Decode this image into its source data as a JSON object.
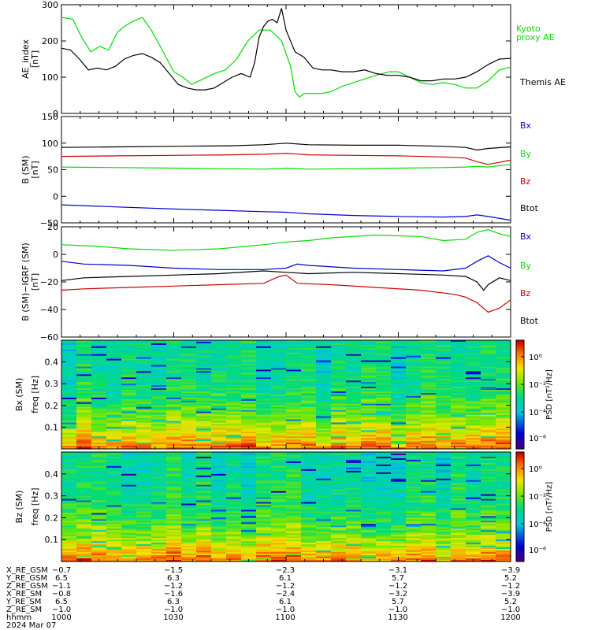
{
  "colors": {
    "black": "#000000",
    "blue": "#0000cc",
    "green": "#00dd00",
    "red": "#cc0000"
  },
  "colorbar": {
    "label": "PSD [nT²/Hz]",
    "ticks": [
      "10⁰",
      "10⁻²",
      "10⁻⁴",
      "10⁻⁶"
    ]
  },
  "chart_data": [
    {
      "type": "line",
      "ylabel": "AE_index",
      "yunit": "[nT]",
      "ylim": [
        0,
        300
      ],
      "yticks": [
        "300",
        "200",
        "100",
        "0"
      ],
      "xrange": [
        1000,
        1200
      ],
      "series": [
        {
          "name": "Kyoto proxy AE",
          "color": "#00dd00",
          "x": [
            1000,
            1005,
            1009,
            1013,
            1017,
            1021,
            1025,
            1028,
            1032,
            1036,
            1040,
            1044,
            1047,
            1050,
            1054,
            1058,
            1063,
            1068,
            1073,
            1078,
            1083,
            1088,
            1093,
            1098,
            1102,
            1104,
            1106,
            1108,
            1112,
            1116,
            1120,
            1125,
            1130,
            1135,
            1140,
            1146,
            1150,
            1155,
            1160,
            1165,
            1170,
            1175,
            1180,
            1185,
            1190,
            1195,
            1200
          ],
          "y": [
            265,
            260,
            210,
            170,
            185,
            175,
            225,
            240,
            255,
            265,
            230,
            185,
            150,
            115,
            100,
            80,
            95,
            110,
            120,
            150,
            200,
            230,
            230,
            200,
            130,
            60,
            45,
            55,
            55,
            55,
            60,
            75,
            85,
            95,
            105,
            115,
            115,
            100,
            85,
            80,
            85,
            80,
            70,
            70,
            90,
            120,
            128
          ]
        },
        {
          "name": "Themis AE",
          "color": "#000000",
          "x": [
            1000,
            1004,
            1008,
            1012,
            1016,
            1020,
            1024,
            1028,
            1032,
            1036,
            1040,
            1044,
            1048,
            1052,
            1056,
            1060,
            1064,
            1068,
            1072,
            1076,
            1080,
            1084,
            1086,
            1088,
            1090,
            1092,
            1094,
            1096,
            1098,
            1100,
            1104,
            1108,
            1112,
            1116,
            1120,
            1125,
            1130,
            1135,
            1140,
            1145,
            1150,
            1155,
            1160,
            1165,
            1170,
            1175,
            1180,
            1185,
            1190,
            1195,
            1200
          ],
          "y": [
            180,
            175,
            150,
            120,
            125,
            120,
            130,
            150,
            160,
            165,
            155,
            140,
            110,
            80,
            70,
            65,
            65,
            70,
            85,
            100,
            110,
            100,
            140,
            210,
            240,
            255,
            260,
            250,
            290,
            230,
            170,
            155,
            125,
            120,
            120,
            115,
            115,
            120,
            110,
            105,
            105,
            100,
            90,
            90,
            95,
            95,
            100,
            115,
            135,
            150,
            152
          ]
        }
      ]
    },
    {
      "type": "line",
      "ylabel": "B (SM)",
      "yunit": "[nT]",
      "ylim": [
        -50,
        150
      ],
      "yticks": [
        "150",
        "100",
        "50",
        "0",
        "−50"
      ],
      "xrange": [
        1000,
        1200
      ],
      "legend": [
        {
          "label": "Bx",
          "color": "#0000cc"
        },
        {
          "label": "By",
          "color": "#00dd00"
        },
        {
          "label": "Bz",
          "color": "#cc0000"
        },
        {
          "label": "Btot",
          "color": "#000000"
        }
      ],
      "series": [
        {
          "name": "Btot",
          "color": "#000000",
          "x": [
            1000,
            1025,
            1050,
            1075,
            1090,
            1100,
            1110,
            1130,
            1150,
            1170,
            1180,
            1185,
            1190,
            1200
          ],
          "y": [
            92,
            93,
            94,
            95,
            97,
            100,
            97,
            96,
            96,
            94,
            92,
            87,
            90,
            93
          ]
        },
        {
          "name": "Bz",
          "color": "#cc0000",
          "x": [
            1000,
            1025,
            1050,
            1075,
            1090,
            1100,
            1110,
            1130,
            1150,
            1170,
            1180,
            1185,
            1190,
            1200
          ],
          "y": [
            75,
            76,
            77,
            78,
            79,
            81,
            78,
            77,
            76,
            74,
            72,
            65,
            60,
            68
          ]
        },
        {
          "name": "By",
          "color": "#00dd00",
          "x": [
            1000,
            1025,
            1050,
            1075,
            1090,
            1100,
            1110,
            1130,
            1150,
            1170,
            1180,
            1185,
            1190,
            1200
          ],
          "y": [
            55,
            54,
            53,
            52,
            51,
            53,
            51,
            52,
            53,
            54,
            55,
            56,
            55,
            60
          ]
        },
        {
          "name": "Bx",
          "color": "#0000cc",
          "x": [
            1000,
            1025,
            1050,
            1075,
            1090,
            1100,
            1110,
            1130,
            1150,
            1170,
            1180,
            1185,
            1190,
            1200
          ],
          "y": [
            -16,
            -20,
            -24,
            -27,
            -29,
            -30,
            -33,
            -36,
            -38,
            -39,
            -38,
            -35,
            -38,
            -45
          ]
        }
      ]
    },
    {
      "type": "line",
      "ylabel": "B (SM)−IGRF (SM)",
      "yunit": "[nT]",
      "ylim": [
        -60,
        20
      ],
      "yticks": [
        "20",
        "0",
        "−20",
        "−40",
        "−60"
      ],
      "xrange": [
        1000,
        1200
      ],
      "legend": [
        {
          "label": "Bx",
          "color": "#0000cc"
        },
        {
          "label": "By",
          "color": "#00dd00"
        },
        {
          "label": "Bz",
          "color": "#cc0000"
        },
        {
          "label": "Btot",
          "color": "#000000"
        }
      ],
      "series": [
        {
          "name": "By",
          "color": "#00dd00",
          "x": [
            1000,
            1015,
            1030,
            1050,
            1070,
            1090,
            1100,
            1110,
            1120,
            1140,
            1160,
            1170,
            1180,
            1185,
            1190,
            1195,
            1200
          ],
          "y": [
            7,
            6,
            4,
            3,
            4,
            7,
            9,
            10,
            12,
            14,
            13,
            10,
            11,
            16,
            18,
            15,
            13
          ]
        },
        {
          "name": "Bx",
          "color": "#0000cc",
          "x": [
            1000,
            1010,
            1030,
            1050,
            1070,
            1090,
            1100,
            1105,
            1110,
            1130,
            1150,
            1170,
            1180,
            1185,
            1190,
            1195,
            1200
          ],
          "y": [
            -5,
            -7,
            -8,
            -10,
            -11,
            -11,
            -10,
            -7,
            -8,
            -10,
            -11,
            -12,
            -10,
            -5,
            -1,
            -6,
            -10
          ]
        },
        {
          "name": "Btot",
          "color": "#000000",
          "x": [
            1000,
            1010,
            1030,
            1050,
            1070,
            1090,
            1100,
            1110,
            1130,
            1150,
            1170,
            1180,
            1185,
            1188,
            1190,
            1195,
            1200
          ],
          "y": [
            -19,
            -17,
            -16,
            -15,
            -14,
            -12,
            -13,
            -14,
            -13,
            -14,
            -15,
            -16,
            -20,
            -26,
            -22,
            -17,
            -19
          ]
        },
        {
          "name": "Bz",
          "color": "#cc0000",
          "x": [
            1000,
            1010,
            1030,
            1050,
            1070,
            1090,
            1097,
            1100,
            1105,
            1120,
            1140,
            1160,
            1175,
            1180,
            1185,
            1190,
            1195,
            1200
          ],
          "y": [
            -26,
            -25,
            -24,
            -23,
            -22,
            -21,
            -16,
            -15,
            -21,
            -22,
            -24,
            -26,
            -29,
            -31,
            -35,
            -42,
            -39,
            -33
          ]
        }
      ]
    },
    {
      "type": "heatmap",
      "ylabel": "Bx (SM)",
      "ylabel2": "freq  [Hz]",
      "ylim": [
        0,
        0.5
      ],
      "yticks": [
        "0.4",
        "0.3",
        "0.2",
        "0.1"
      ],
      "xrange": [
        1000,
        1200
      ]
    },
    {
      "type": "heatmap",
      "ylabel": "Bz (SM)",
      "ylabel2": "freq  [Hz]",
      "ylim": [
        0,
        0.5
      ],
      "yticks": [
        "0.4",
        "0.3",
        "0.2",
        "0.1"
      ],
      "xrange": [
        1000,
        1200
      ]
    }
  ],
  "ephemeris": {
    "rows": [
      {
        "label": "X_RE_GSM",
        "values": [
          "−0.7",
          "−1.5",
          "−2.3",
          "−3.1",
          "−3.9"
        ]
      },
      {
        "label": "Y_RE_GSM",
        "values": [
          "6.5",
          "6.3",
          "6.1",
          "5.7",
          "5.2"
        ]
      },
      {
        "label": "Z_RE_GSM",
        "values": [
          "−1.1",
          "−1.2",
          "−1.2",
          "−1.2",
          "−1.2"
        ]
      },
      {
        "label": "X_RE_SM",
        "values": [
          "−0.8",
          "−1.6",
          "−2.4",
          "−3.2",
          "−3.9"
        ]
      },
      {
        "label": "Y_RE_SM",
        "values": [
          "6.5",
          "6.3",
          "6.1",
          "5.7",
          "5.2"
        ]
      },
      {
        "label": "Z_RE_SM",
        "values": [
          "−1.0",
          "−1.0",
          "−1.0",
          "−1.0",
          "−1.0"
        ]
      },
      {
        "label": "hhmm",
        "values": [
          "1000",
          "1030",
          "1100",
          "1130",
          "1200"
        ]
      }
    ],
    "date": "2024 Mar 07"
  },
  "ae_legend": {
    "kyoto": [
      "Kyoto",
      "proxy AE"
    ],
    "themis": "Themis AE"
  }
}
